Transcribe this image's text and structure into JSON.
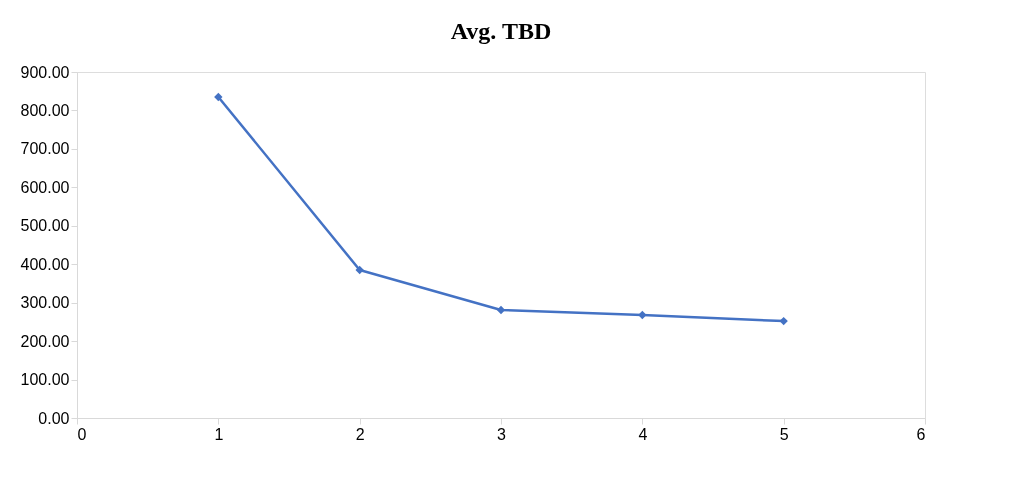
{
  "chart_data": {
    "type": "line",
    "title": "Avg. TBD",
    "x": [
      1,
      2,
      3,
      4,
      5
    ],
    "series": [
      {
        "color": "#4472c4",
        "values": [
          835,
          385,
          281,
          268,
          252
        ]
      }
    ],
    "xlim": [
      0,
      6
    ],
    "xticks": [
      0,
      1,
      2,
      3,
      4,
      5,
      6
    ],
    "ylim": [
      0,
      900
    ],
    "yticks": [
      {
        "value": 0,
        "label": "0.00"
      },
      {
        "value": 100,
        "label": "100.00"
      },
      {
        "value": 200,
        "label": "200.00"
      },
      {
        "value": 300,
        "label": "300.00"
      },
      {
        "value": 400,
        "label": "400.00"
      },
      {
        "value": 500,
        "label": "500.00"
      },
      {
        "value": 600,
        "label": "600.00"
      },
      {
        "value": 700,
        "label": "700.00"
      },
      {
        "value": 800,
        "label": "800.00"
      },
      {
        "value": 900,
        "label": "900.00"
      }
    ],
    "grid": false,
    "legend": false,
    "marker": "diamond",
    "line_style": "solid"
  }
}
